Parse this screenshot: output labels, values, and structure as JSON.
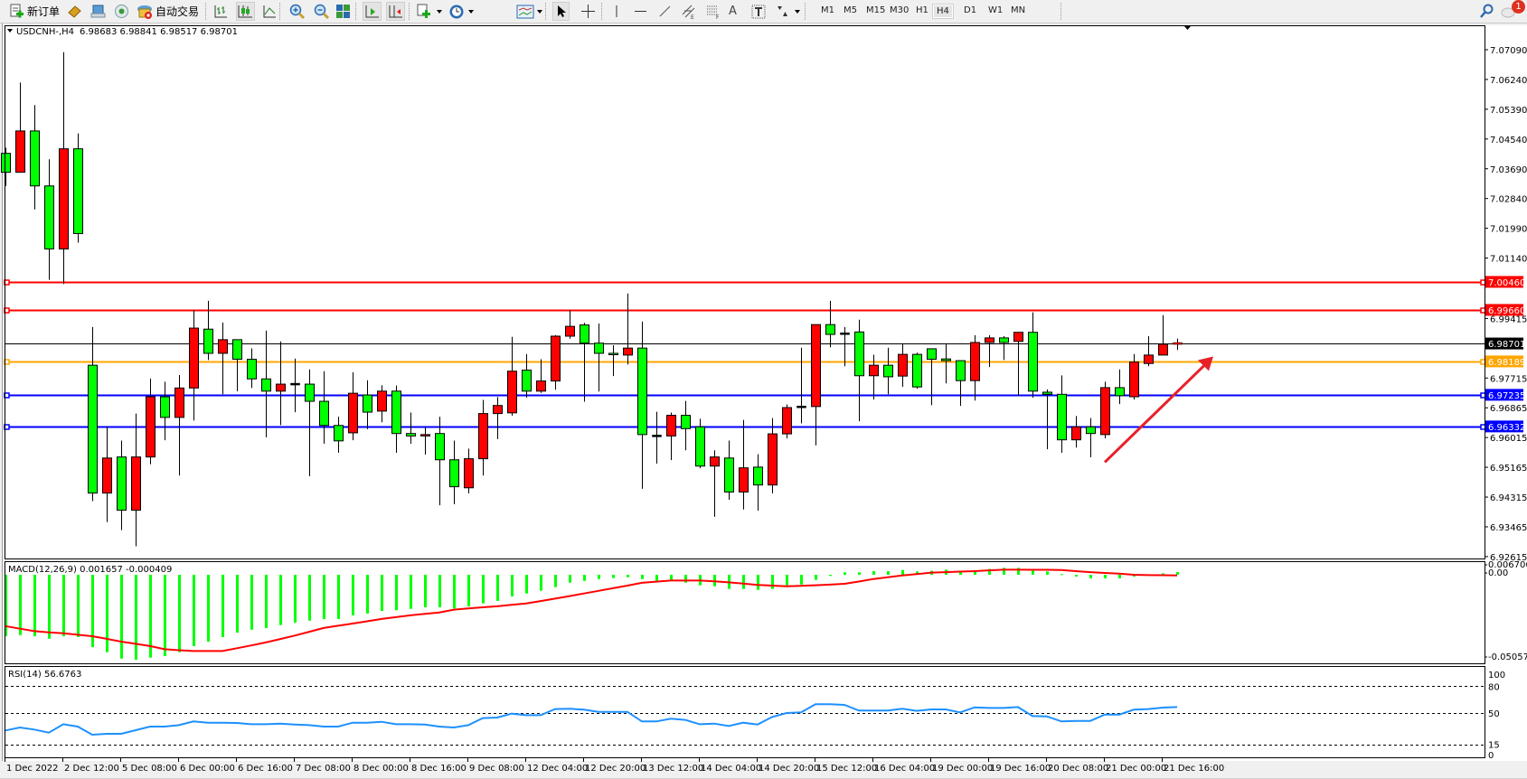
{
  "toolbar": {
    "new_order_label": "新订单",
    "autotrading_label": "自动交易",
    "icons": [
      "new-order-icon",
      "market-watch-icon",
      "data-window-icon",
      "navigator-icon",
      "autotrading-icon",
      "bar-chart-icon",
      "candlestick-icon",
      "line-chart-icon",
      "zoom-in-icon",
      "zoom-out-icon",
      "tile-windows-icon",
      "auto-scroll-icon",
      "chart-shift-icon",
      "new-chart-icon",
      "periods-icon",
      "indicators-icon",
      "cursor-icon",
      "crosshair-icon",
      "vertical-line-icon",
      "horizontal-line-icon",
      "trendline-icon",
      "equidistant-channel-icon",
      "fibonacci-icon",
      "text-icon",
      "text-label-icon",
      "arrows-icon",
      "search-icon",
      "notification-icon"
    ],
    "timeframes": [
      "M1",
      "M5",
      "M15",
      "M30",
      "H1",
      "H4",
      "D1",
      "W1",
      "MN"
    ],
    "active_timeframe": "H4",
    "notification_count": "1"
  },
  "chart_header": {
    "symbol": "USDCNH-,H4",
    "ohlc_text": "6.98683 6.98841 6.98517 6.98701"
  },
  "colors": {
    "bull_candle": "#ff0000",
    "bear_candle": "#00ff00",
    "macd_histogram": "#00ff00",
    "macd_signal": "#ff0000",
    "rsi_line": "#1e90ff",
    "arrow": "#e8202a"
  },
  "chart_data": [
    {
      "type": "candlestick",
      "title": "USDCNH-,H4",
      "y_ticks": [
        "7.07090",
        "7.06240",
        "7.05390",
        "7.04540",
        "7.03690",
        "7.02840",
        "7.01990",
        "7.01140",
        "6.99415",
        "6.97715",
        "6.96865",
        "6.96015",
        "6.95165",
        "6.94315",
        "6.93465",
        "6.92615"
      ],
      "ylim": [
        6.92615,
        7.0709
      ],
      "x_tick_labels": [
        "1 Dec 2022",
        "2 Dec 12:00",
        "5 Dec 08:00",
        "6 Dec 00:00",
        "6 Dec 16:00",
        "7 Dec 08:00",
        "8 Dec 00:00",
        "8 Dec 16:00",
        "9 Dec 08:00",
        "12 Dec 04:00",
        "12 Dec 20:00",
        "13 Dec 12:00",
        "14 Dec 04:00",
        "14 Dec 20:00",
        "15 Dec 12:00",
        "16 Dec 04:00",
        "19 Dec 00:00",
        "19 Dec 16:00",
        "20 Dec 08:00",
        "21 Dec 00:00",
        "21 Dec 16:00"
      ],
      "x_tick_every_bars": 4,
      "ohlc": [
        [
          7.0413,
          7.0429,
          7.032,
          7.0359
        ],
        [
          7.0359,
          7.0615,
          7.0359,
          7.0477
        ],
        [
          7.0477,
          7.0551,
          7.0253,
          7.032
        ],
        [
          7.032,
          7.0396,
          7.0052,
          7.014
        ],
        [
          7.014,
          7.0702,
          7.004,
          7.0426
        ],
        [
          7.0426,
          7.047,
          7.0158,
          7.0184
        ],
        [
          6.9808,
          6.9917,
          6.942,
          6.9443
        ],
        [
          6.9443,
          6.9632,
          6.936,
          6.9543
        ],
        [
          6.9546,
          6.9593,
          6.9337,
          6.9394
        ],
        [
          6.9394,
          6.967,
          6.9291,
          6.9546
        ],
        [
          6.9546,
          6.977,
          6.9525,
          6.9718
        ],
        [
          6.9718,
          6.9761,
          6.9594,
          6.9659
        ],
        [
          6.9659,
          6.978,
          6.9493,
          6.9743
        ],
        [
          6.9743,
          6.9965,
          6.965,
          6.9914
        ],
        [
          6.9911,
          6.9992,
          6.9823,
          6.9842
        ],
        [
          6.9842,
          6.993,
          6.9725,
          6.9881
        ],
        [
          6.9881,
          6.9881,
          6.9734,
          6.9825
        ],
        [
          6.9825,
          6.9856,
          6.9743,
          6.9769
        ],
        [
          6.9769,
          6.9907,
          6.9602,
          6.9734
        ],
        [
          6.9734,
          6.9876,
          6.9637,
          6.9754
        ],
        [
          6.9754,
          6.9827,
          6.9674,
          6.9754
        ],
        [
          6.9754,
          6.9796,
          6.9491,
          6.9705
        ],
        [
          6.9705,
          6.9791,
          6.9584,
          6.9636
        ],
        [
          6.9636,
          6.9661,
          6.9558,
          6.9592
        ],
        [
          6.9615,
          6.9788,
          6.9594,
          6.9728
        ],
        [
          6.9723,
          6.9765,
          6.9625,
          6.9674
        ],
        [
          6.9677,
          6.9751,
          6.9645,
          6.9734
        ],
        [
          6.9734,
          6.975,
          6.9558,
          6.9613
        ],
        [
          6.9613,
          6.9673,
          6.9584,
          6.9606
        ],
        [
          6.9606,
          6.9632,
          6.9553,
          6.961
        ],
        [
          6.9613,
          6.9661,
          6.9408,
          6.9538
        ],
        [
          6.9538,
          6.9593,
          6.9411,
          6.9461
        ],
        [
          6.9458,
          6.957,
          6.9442,
          6.9541
        ],
        [
          6.9541,
          6.9709,
          6.9493,
          6.967
        ],
        [
          6.967,
          6.9717,
          6.9597,
          6.9693
        ],
        [
          6.9672,
          6.9889,
          6.9664,
          6.9791
        ],
        [
          6.9794,
          6.984,
          6.9715,
          6.9734
        ],
        [
          6.9734,
          6.9825,
          6.9729,
          6.9763
        ],
        [
          6.9763,
          6.9894,
          6.9738,
          6.9891
        ],
        [
          6.9891,
          6.9965,
          6.9884,
          6.9919
        ],
        [
          6.9923,
          6.9929,
          6.9704,
          6.9871
        ],
        [
          6.9871,
          6.9927,
          6.9733,
          6.9842
        ],
        [
          6.9842,
          6.9865,
          6.9777,
          6.9838
        ],
        [
          6.9837,
          7.0013,
          6.981,
          6.9857
        ],
        [
          6.9857,
          6.9933,
          6.9455,
          6.961
        ],
        [
          6.9606,
          6.9675,
          6.9527,
          6.9606
        ],
        [
          6.9606,
          6.9673,
          6.9537,
          6.9665
        ],
        [
          6.9665,
          6.9706,
          6.9565,
          6.9627
        ],
        [
          6.9632,
          6.9655,
          6.9514,
          6.952
        ],
        [
          6.952,
          6.9565,
          6.9375,
          6.9546
        ],
        [
          6.9543,
          6.9593,
          6.9424,
          6.9446
        ],
        [
          6.9446,
          6.9652,
          6.9396,
          6.9515
        ],
        [
          6.9517,
          6.9554,
          6.9393,
          6.9466
        ],
        [
          6.9466,
          6.9657,
          6.9442,
          6.9612
        ],
        [
          6.9612,
          6.9696,
          6.9599,
          6.9687
        ],
        [
          6.9689,
          6.9858,
          6.9642,
          6.9689
        ],
        [
          6.969,
          6.9924,
          6.9579,
          6.9924
        ],
        [
          6.9924,
          6.9992,
          6.9859,
          6.9896
        ],
        [
          6.9898,
          6.9917,
          6.9805,
          6.9898
        ],
        [
          6.9903,
          6.9938,
          6.9648,
          6.9778
        ],
        [
          6.9778,
          6.9838,
          6.971,
          6.9808
        ],
        [
          6.9808,
          6.9858,
          6.9725,
          6.9775
        ],
        [
          6.9777,
          6.987,
          6.9746,
          6.9839
        ],
        [
          6.9839,
          6.9844,
          6.9741,
          6.9746
        ],
        [
          6.9855,
          6.9855,
          6.9694,
          6.9825
        ],
        [
          6.9826,
          6.987,
          6.9756,
          6.9821
        ],
        [
          6.9821,
          6.9821,
          6.9692,
          6.9764
        ],
        [
          6.9764,
          6.9894,
          6.9707,
          6.9873
        ],
        [
          6.9873,
          6.9894,
          6.9803,
          6.9886
        ],
        [
          6.9886,
          6.9891,
          6.9823,
          6.9873
        ],
        [
          6.9876,
          6.9902,
          6.972,
          6.9902
        ],
        [
          6.9902,
          6.9959,
          6.9715,
          6.9734
        ],
        [
          6.9731,
          6.9739,
          6.9568,
          6.9725
        ],
        [
          6.9725,
          6.9779,
          6.9558,
          6.9595
        ],
        [
          6.9595,
          6.9663,
          6.9573,
          6.9632
        ],
        [
          6.9632,
          6.9657,
          6.9545,
          6.9613
        ],
        [
          6.961,
          6.9761,
          6.9599,
          6.9744
        ],
        [
          6.9744,
          6.9796,
          6.9697,
          6.9721
        ],
        [
          6.9718,
          6.984,
          6.971,
          6.9817
        ],
        [
          6.9813,
          6.9891,
          6.9805,
          6.9837
        ],
        [
          6.9837,
          6.9951,
          6.9837,
          6.9868
        ],
        [
          6.98683,
          6.98841,
          6.98517,
          6.98701
        ]
      ],
      "horizontal_lines": [
        {
          "price": "7.00460",
          "color": "#ff0000"
        },
        {
          "price": "6.99660",
          "color": "#ff0000"
        },
        {
          "price": "6.98189",
          "color": "#ffa500"
        },
        {
          "price": "6.97235",
          "color": "#0000ff"
        },
        {
          "price": "6.96332",
          "color": "#0000ff"
        }
      ],
      "current_price": {
        "price": "6.98701",
        "color": "#000000"
      },
      "annotation_arrow": {
        "from": {
          "bar": 76,
          "price": 6.9531
        },
        "to": {
          "bar": 83.5,
          "price": 6.9833
        },
        "direction": "up-right"
      }
    },
    {
      "type": "bar+line",
      "title": "MACD(12,26,9) 0.001657 -0.000409",
      "y_ticks": [
        "0.006706",
        "0.00",
        "-0.050575"
      ],
      "ylim": [
        -0.050575,
        0.006706
      ],
      "histogram": [
        -0.0374,
        -0.0367,
        -0.0374,
        -0.0389,
        -0.0374,
        -0.0379,
        -0.044,
        -0.0471,
        -0.051,
        -0.0517,
        -0.0504,
        -0.0495,
        -0.0471,
        -0.0434,
        -0.0407,
        -0.0379,
        -0.0352,
        -0.0334,
        -0.0324,
        -0.0306,
        -0.0291,
        -0.0279,
        -0.0269,
        -0.0269,
        -0.0247,
        -0.0236,
        -0.022,
        -0.0216,
        -0.0207,
        -0.0198,
        -0.0198,
        -0.0205,
        -0.0192,
        -0.0174,
        -0.0159,
        -0.0132,
        -0.0114,
        -0.0097,
        -0.0075,
        -0.0048,
        -0.0037,
        -0.0026,
        -0.002,
        -0.0015,
        -0.0026,
        -0.0037,
        -0.0037,
        -0.0048,
        -0.0064,
        -0.007,
        -0.0086,
        -0.0086,
        -0.0092,
        -0.0086,
        -0.0064,
        -0.0059,
        -0.0031,
        -0.0007,
        0.0015,
        0.0015,
        0.0022,
        0.0022,
        0.0029,
        0.002,
        0.0024,
        0.0031,
        0.0016,
        0.0027,
        0.0035,
        0.0042,
        0.0042,
        0.0024,
        0.002,
        0.0004,
        -0.0011,
        -0.0022,
        -0.0022,
        -0.0022,
        -0.0011,
        0.0,
        0.0009,
        0.001657
      ],
      "signal": [
        -0.0312,
        -0.0328,
        -0.0343,
        -0.035,
        -0.0356,
        -0.0365,
        -0.0374,
        -0.039,
        -0.0407,
        -0.042,
        -0.0434,
        -0.0453,
        -0.0459,
        -0.0464,
        -0.0464,
        -0.0464,
        -0.0447,
        -0.043,
        -0.0412,
        -0.0391,
        -0.037,
        -0.0347,
        -0.0324,
        -0.031,
        -0.0297,
        -0.0283,
        -0.0269,
        -0.0258,
        -0.0247,
        -0.0238,
        -0.0229,
        -0.0212,
        -0.0205,
        -0.0198,
        -0.0192,
        -0.0183,
        -0.0174,
        -0.016,
        -0.0145,
        -0.013,
        -0.0114,
        -0.0098,
        -0.0082,
        -0.0066,
        -0.0049,
        -0.0042,
        -0.0035,
        -0.0035,
        -0.0035,
        -0.004,
        -0.0046,
        -0.0054,
        -0.0062,
        -0.0066,
        -0.007,
        -0.0067,
        -0.0064,
        -0.006,
        -0.0055,
        -0.0041,
        -0.0026,
        -0.0015,
        -0.0004,
        0.0004,
        0.0013,
        0.0016,
        0.0019,
        0.0022,
        0.0027,
        0.0031,
        0.0031,
        0.003,
        0.003,
        0.0029,
        0.0022,
        0.0016,
        0.0011,
        0.0007,
        0.0,
        -0.0002,
        -0.0003,
        -0.000409
      ]
    },
    {
      "type": "line",
      "title": "RSI(14) 56.6763",
      "y_ticks": [
        "100",
        "80",
        "50",
        "15",
        "0"
      ],
      "levels": [
        80,
        50,
        15
      ],
      "ylim": [
        0,
        100
      ],
      "values": [
        30.5,
        33.8,
        31.5,
        28.1,
        37.5,
        34.8,
        25.8,
        26.8,
        26.8,
        30.8,
        34.8,
        34.8,
        36.5,
        40.6,
        39.2,
        39.2,
        38.9,
        37.5,
        37.5,
        38.2,
        37.2,
        36.5,
        34.8,
        34.8,
        39.2,
        39.2,
        40.2,
        37.5,
        37.5,
        37.2,
        34.8,
        33.8,
        36.5,
        44.3,
        44.9,
        49.3,
        47.6,
        47.6,
        54.4,
        54.7,
        53.7,
        51.3,
        51.3,
        51.3,
        40.6,
        40.6,
        43.6,
        42.3,
        37.5,
        38.2,
        35.5,
        39.2,
        37.2,
        45.6,
        50.0,
        50.7,
        59.8,
        59.8,
        59.1,
        52.7,
        52.7,
        52.7,
        54.7,
        52.4,
        54.0,
        54.0,
        50.7,
        56.4,
        55.7,
        55.7,
        56.7,
        46.6,
        46.3,
        40.6,
        41.2,
        41.2,
        48.3,
        48.3,
        53.7,
        54.4,
        56.1,
        56.6763
      ]
    }
  ]
}
